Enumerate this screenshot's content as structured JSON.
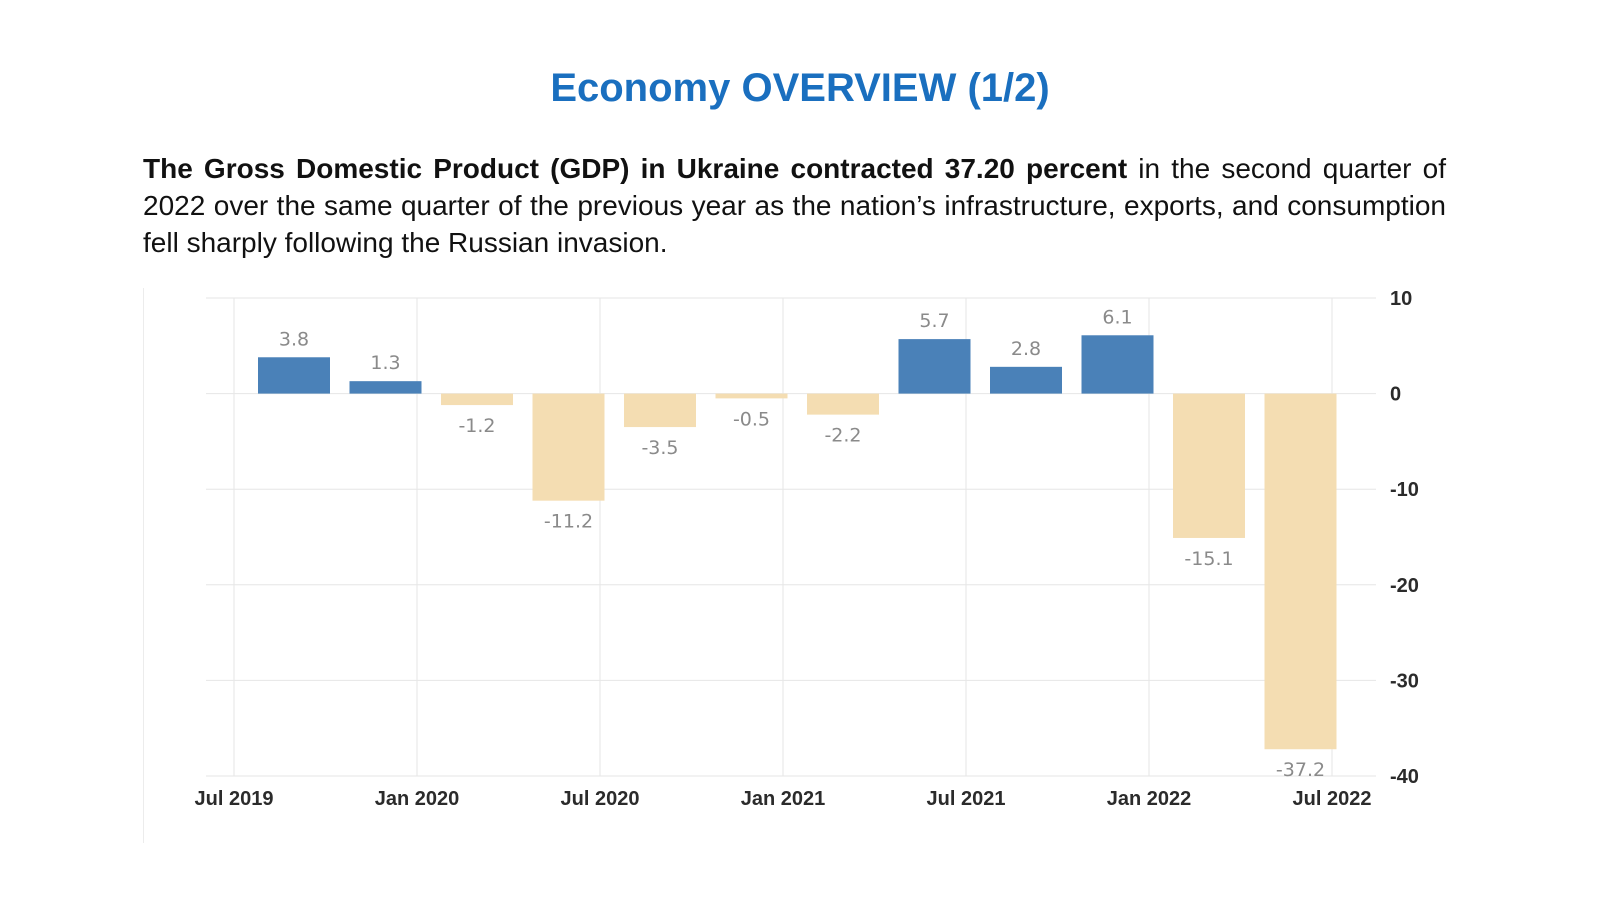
{
  "slide": {
    "title": "Economy OVERVIEW (1/2)",
    "intro_bold": "The Gross Domestic Product (GDP) in Ukraine contracted 37.20 percent",
    "intro_rest": " in the second quarter of 2022 over the same quarter of the previous year as the nation’s infrastructure, exports, and consumption fell sharply following the Russian invasion."
  },
  "colors": {
    "title": "#1a6fbf",
    "positive_bar": "#4a81b8",
    "negative_bar": "#f4ddb2",
    "grid": "#e6e6e6",
    "bar_label": "#8a8a8a",
    "axis_label": "#2b2b2b"
  },
  "chart_data": {
    "type": "bar",
    "title": "",
    "xlabel": "",
    "ylabel": "",
    "categories": [
      "Q3 2019",
      "Q4 2019",
      "Q1 2020",
      "Q2 2020",
      "Q3 2020",
      "Q4 2020",
      "Q1 2021",
      "Q2 2021",
      "Q3 2021",
      "Q4 2021",
      "Q1 2022",
      "Q2 2022"
    ],
    "values": [
      3.8,
      1.3,
      -1.2,
      -11.2,
      -3.5,
      -0.5,
      -2.2,
      5.7,
      2.8,
      6.1,
      -15.1,
      -37.2
    ],
    "value_labels": [
      "3.8",
      "1.3",
      "-1.2",
      "-11.2",
      "-3.5",
      "-0.5",
      "-2.2",
      "5.7",
      "2.8",
      "6.1",
      "-15.1",
      "-37.2"
    ],
    "ylim": [
      -40,
      10
    ],
    "y_ticks": [
      10,
      0,
      -10,
      -20,
      -30,
      -40
    ],
    "x_tick_labels": [
      "Jul 2019",
      "Jan 2020",
      "Jul 2020",
      "Jan 2021",
      "Jul 2021",
      "Jan 2022",
      "Jul 2022"
    ],
    "y_axis_position": "right",
    "grid": true
  }
}
